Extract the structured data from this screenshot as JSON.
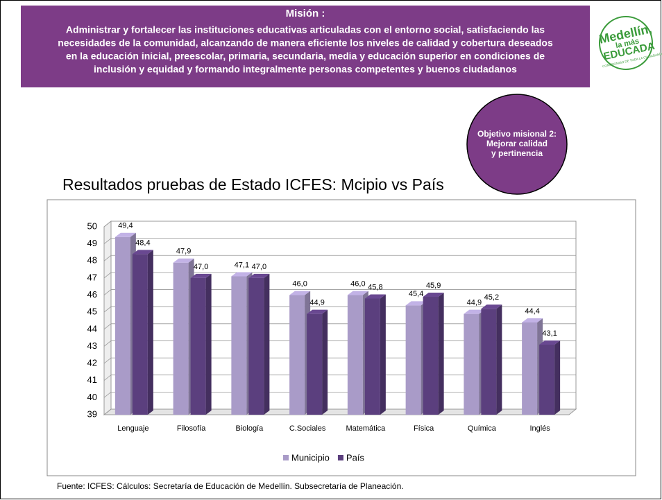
{
  "header": {
    "title": "Misión :",
    "text_lines": [
      "Administrar y fortalecer las instituciones educativas articuladas con el entorno social, satisfaciendo las",
      "necesidades de la comunidad, alcanzando de manera eficiente los niveles de calidad y cobertura deseados",
      "en la educación inicial, preescolar, primaria, secundaria, media y educación superior en condiciones de",
      "inclusión y equidad y formando integralmente personas competentes y buenos ciudadanos"
    ]
  },
  "logo": {
    "lines": [
      "Medellín,",
      "la más",
      "EDUCADA"
    ],
    "tagline": "COMPROMISO DE TODA LA CIUDADANÍA"
  },
  "objective": [
    "Objetivo misional 2:",
    "Mejorar calidad",
    "y pertinencia"
  ],
  "chart_data": {
    "type": "bar",
    "title": "Resultados pruebas de Estado ICFES: Mcipio vs País",
    "categories": [
      "Lenguaje",
      "Filosofía",
      "Biología",
      "C.Sociales",
      "Matemática",
      "Física",
      "Química",
      "Inglés"
    ],
    "series": [
      {
        "name": "Municipio",
        "color": "#a99bc8",
        "values": [
          49.4,
          47.9,
          47.1,
          46.0,
          46.0,
          45.4,
          44.9,
          44.4
        ],
        "value_labels": [
          "49,4",
          "47,9",
          "47,1",
          "46,0",
          "46,0",
          "45,4",
          "44,9",
          "44,4"
        ]
      },
      {
        "name": "País",
        "color": "#5b3f7e",
        "values": [
          48.4,
          47.0,
          47.0,
          44.9,
          45.8,
          45.9,
          45.2,
          43.1
        ],
        "value_labels": [
          "48,4",
          "47,0",
          "47,0",
          "44,9",
          "45,8",
          "45,9",
          "45,2",
          "43,1"
        ]
      }
    ],
    "ylim": [
      39,
      50
    ],
    "yticks": [
      39,
      40,
      41,
      42,
      43,
      44,
      45,
      46,
      47,
      48,
      49,
      50
    ],
    "grid": true,
    "legend": "bottom"
  },
  "source": "Fuente: ICFES: Cálculos: Secretaría de Educación de Medellín. Subsecretaría de Planeación."
}
